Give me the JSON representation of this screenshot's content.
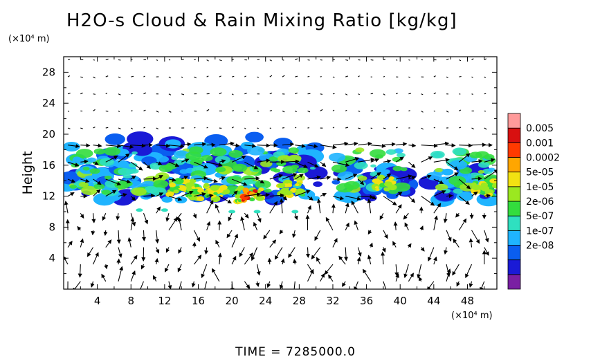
{
  "chart_data": {
    "type": "heatmap",
    "title": "H2O-s Cloud & Rain Mixing Ratio [kg/kg]",
    "ylabel": "Height",
    "xlabel": "",
    "x_unit_label": "(×10⁴ m)",
    "y_unit_label": "(×10⁴ m)",
    "xlim": [
      0,
      51.5
    ],
    "ylim": [
      0,
      30
    ],
    "x_ticks": [
      4,
      8,
      12,
      16,
      20,
      24,
      28,
      32,
      36,
      40,
      44,
      48
    ],
    "y_ticks": [
      4,
      8,
      12,
      16,
      20,
      24,
      28
    ],
    "grid": false,
    "colorbar": {
      "position": "right",
      "levels": [
        "0.005",
        "0.001",
        "0.0002",
        "5e-05",
        "1e-05",
        "2e-06",
        "5e-07",
        "1e-07",
        "2e-08"
      ],
      "colors": [
        "#7a1fa3",
        "#1a1ad6",
        "#0a5ef0",
        "#1fb4ff",
        "#2fe0c0",
        "#33dd3d",
        "#9be820",
        "#f2e212",
        "#ffa600",
        "#ff3a00",
        "#d81010",
        "#ff9a9a"
      ]
    },
    "footer": "TIME  =  7285000.0",
    "cloud_layer": {
      "base_height": 11,
      "top_height": 20,
      "x_extent": [
        0,
        51.5
      ],
      "max_region": {
        "x": 22,
        "y": 12,
        "level": "0.001"
      }
    },
    "overlay": "wind vectors (arrows)"
  }
}
